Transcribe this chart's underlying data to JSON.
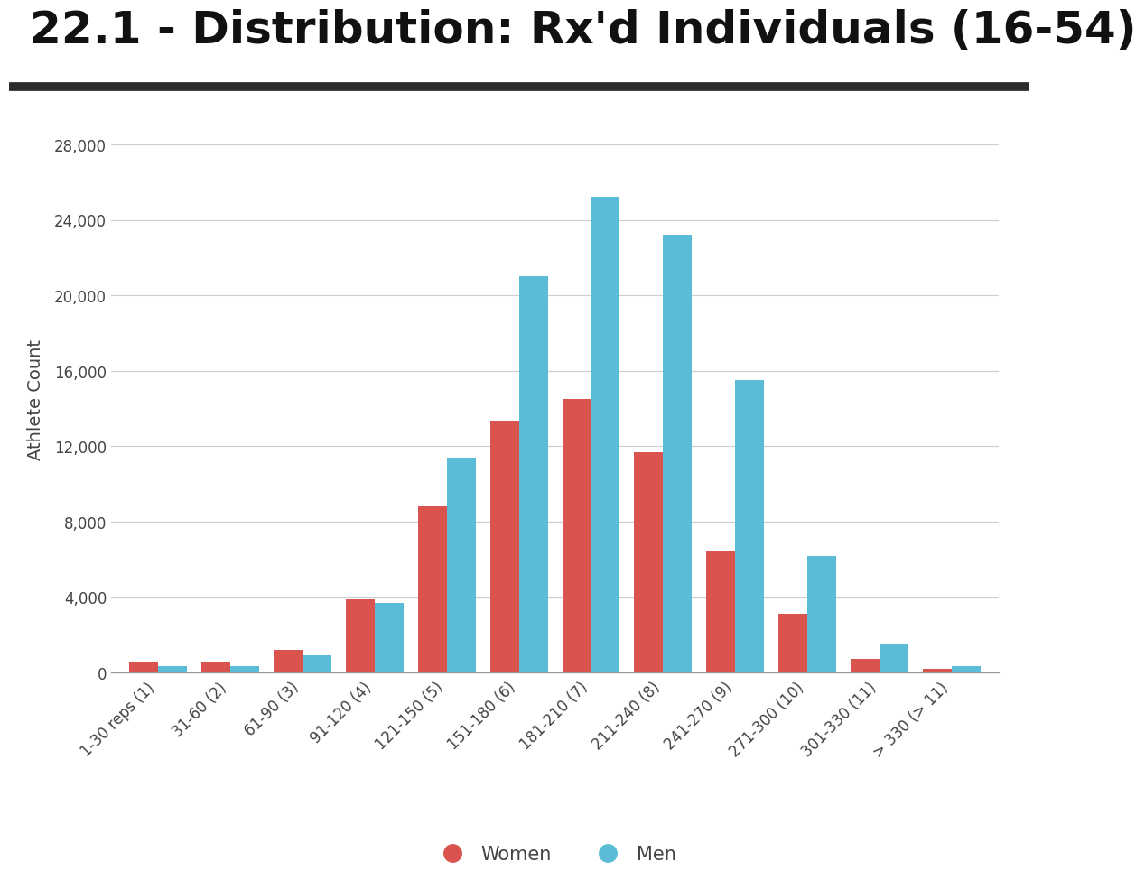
{
  "title": "22.1 - Distribution: Rx’d Individuals (16-54)",
  "title_plain": "22.1 - Distribution: Rx'd Individuals (16-54)",
  "ylabel": "Athlete Count",
  "categories": [
    "1-30 reps (1)",
    "31-60 (2)",
    "61-90 (3)",
    "91-120 (4)",
    "121-150 (5)",
    "151-180 (6)",
    "181-210 (7)",
    "211-240 (8)",
    "241-270 (9)",
    "271-300 (10)",
    "301-330 (11)",
    "> 330 (> 11)"
  ],
  "women": [
    600,
    550,
    1200,
    3900,
    8800,
    13300,
    14500,
    11700,
    6400,
    3100,
    700,
    200
  ],
  "men": [
    350,
    350,
    900,
    3700,
    11400,
    21000,
    25200,
    23200,
    15500,
    6200,
    1500,
    350
  ],
  "women_color": "#d9534f",
  "men_color": "#5bbcd8",
  "background_color": "#ffffff",
  "ylim": [
    0,
    29000
  ],
  "yticks": [
    0,
    4000,
    8000,
    12000,
    16000,
    20000,
    24000,
    28000
  ],
  "title_fontsize": 36,
  "axis_label_fontsize": 14,
  "tick_fontsize": 12,
  "legend_fontsize": 15,
  "bar_width": 0.4,
  "title_color": "#111111",
  "tick_color": "#444444",
  "grid_color": "#cccccc",
  "separator_color": "#2b2b2b",
  "separator_linewidth": 7
}
